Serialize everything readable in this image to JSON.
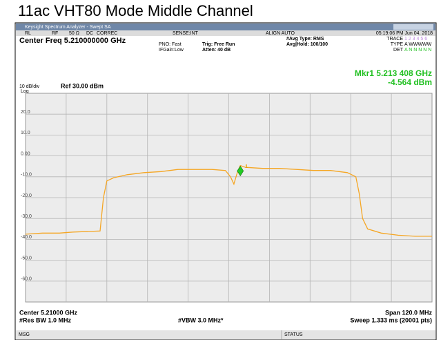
{
  "title": "11ac VHT80 Mode Middle Channel",
  "window": {
    "title": "Keysight Spectrum Analyzer - Swept SA"
  },
  "status_bar": {
    "items": [
      "RL",
      "RF",
      "50 Ω",
      "DC",
      "CORREC",
      "SENSE:INT",
      "ALIGN AUTO",
      "05:19:06 PM Jun 04, 2018"
    ]
  },
  "settings": {
    "center_freq": "Center Freq 5.210000000 GHz",
    "pno": "PNO: Fast",
    "ifgain": "IFGain:Low",
    "trig": "Trig: Free Run",
    "atten": "Atten: 40 dB",
    "avg_type": "#Avg Type: RMS",
    "avg_hold": "Avg|Hold: 100/100",
    "trace_label": "TRACE",
    "trace_value": "1 2 3 4 5 6",
    "type_label": "TYPE",
    "type_value": "A WWWWW",
    "det_label": "DET",
    "det_value": "A N N N N N"
  },
  "marker_readout": {
    "freq": "Mkr1 5.213 408 GHz",
    "level": "-4.564 dBm"
  },
  "scale": {
    "div": "10 dB/div",
    "mode": "Log",
    "ref": "Ref 30.00 dBm"
  },
  "footer": {
    "center": "Center 5.21000 GHz",
    "rbw": "#Res BW 1.0 MHz",
    "vbw": "#VBW 3.0 MHz*",
    "span": "Span 120.0 MHz",
    "sweep": "Sweep  1.333 ms (20001 pts)",
    "msg": "MSG",
    "status": "STATUS"
  },
  "chart_data": {
    "type": "line",
    "color": "#f5a623",
    "x": [
      5150,
      5155,
      5160,
      5164,
      5172,
      5173,
      5174,
      5176,
      5180,
      5185,
      5190,
      5195,
      5200,
      5205,
      5209,
      5210.5,
      5211.5,
      5212.5,
      5213.4,
      5215,
      5220,
      5225,
      5230,
      5235,
      5240,
      5245,
      5247.5,
      5248.5,
      5249.5,
      5251,
      5255,
      5260,
      5265,
      5270
    ],
    "values": [
      -37.5,
      -37,
      -37,
      -36.5,
      -36,
      -20,
      -12,
      -10.5,
      -9,
      -8,
      -7.5,
      -6.5,
      -6.5,
      -6.5,
      -7,
      -10,
      -13.5,
      -8,
      -4.6,
      -5.5,
      -6,
      -6,
      -6.5,
      -7,
      -7,
      -8,
      -10,
      -18,
      -30,
      -35,
      -37,
      -38,
      -38.5,
      -38.5
    ],
    "xlim": [
      5150,
      5270
    ],
    "ylim": [
      -70,
      30
    ],
    "yticks": [
      {
        "value": 20,
        "label": "20.0"
      },
      {
        "value": 10,
        "label": "10.0"
      },
      {
        "value": 0,
        "label": "0.00"
      },
      {
        "value": -10,
        "label": "-10.0"
      },
      {
        "value": -20,
        "label": "-20.0"
      },
      {
        "value": -30,
        "label": "-30.0"
      },
      {
        "value": -40,
        "label": "-40.0"
      },
      {
        "value": -50,
        "label": "-50.0"
      },
      {
        "value": -60,
        "label": "-60.0"
      }
    ],
    "grid": true,
    "marker": {
      "x": 5213.408,
      "y": -4.564,
      "label": "1"
    }
  }
}
